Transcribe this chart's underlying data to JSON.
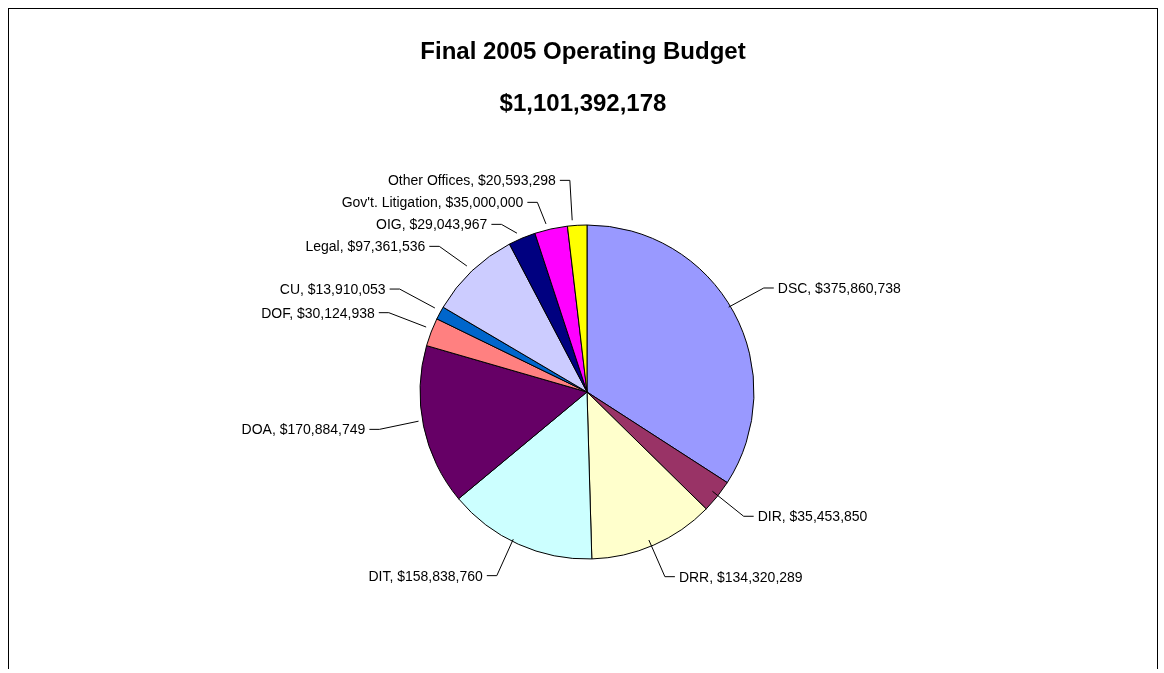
{
  "chart_data": {
    "type": "pie",
    "title": "Final 2005 Operating Budget",
    "subtitle": "$1,101,392,178",
    "categories": [
      "DSC",
      "DIR",
      "DRR",
      "DIT",
      "DOA",
      "DOF",
      "CU",
      "Legal",
      "OIG",
      "Gov't. Litigation",
      "Other Offices"
    ],
    "values": [
      375860738,
      35453850,
      134320289,
      158838760,
      170884749,
      30124938,
      13910053,
      97361536,
      29043967,
      35000000,
      20593298
    ],
    "value_labels": [
      "$375,860,738",
      "$35,453,850",
      "$134,320,289",
      "$158,838,760",
      "$170,884,749",
      "$30,124,938",
      "$13,910,053",
      "$97,361,536",
      "$29,043,967",
      "$35,000,000",
      "$20,593,298"
    ],
    "colors": [
      "#9999ff",
      "#993366",
      "#ffffcc",
      "#ccffff",
      "#660066",
      "#ff8080",
      "#0066cc",
      "#ccccff",
      "#000080",
      "#ff00ff",
      "#ffff00"
    ]
  }
}
